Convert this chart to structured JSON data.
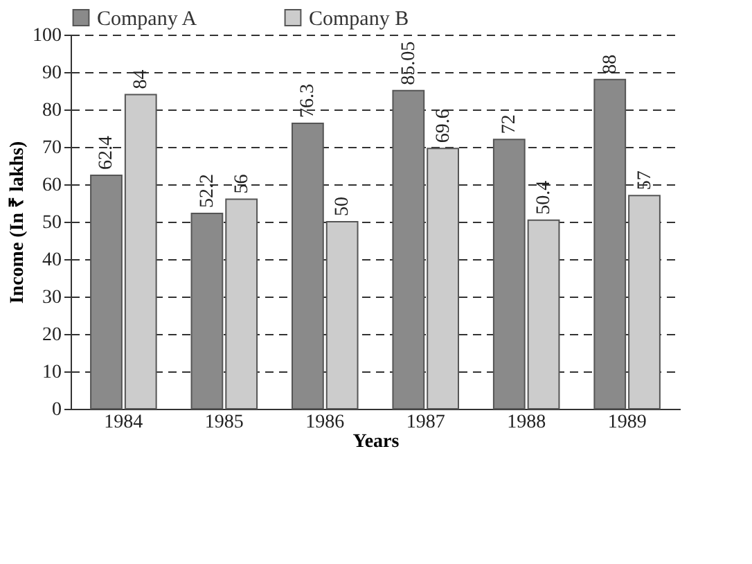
{
  "chart_data": {
    "type": "bar",
    "xlabel": "Years",
    "ylabel": "Income (In ₹ lakhs)",
    "categories": [
      "1984",
      "1985",
      "1986",
      "1987",
      "1988",
      "1989"
    ],
    "series": [
      {
        "name": "Company A",
        "color": "#8a8a8a",
        "values": [
          62.4,
          52.2,
          76.3,
          85.05,
          72,
          88
        ]
      },
      {
        "name": "Company B",
        "color": "#cccccc",
        "values": [
          84,
          56,
          50,
          69.6,
          50.4,
          57
        ]
      }
    ],
    "ylim": [
      0,
      100
    ],
    "yticks": [
      0,
      10,
      20,
      30,
      40,
      50,
      60,
      70,
      80,
      90,
      100
    ],
    "grid": "y",
    "legend": "top",
    "data_labels": true
  }
}
